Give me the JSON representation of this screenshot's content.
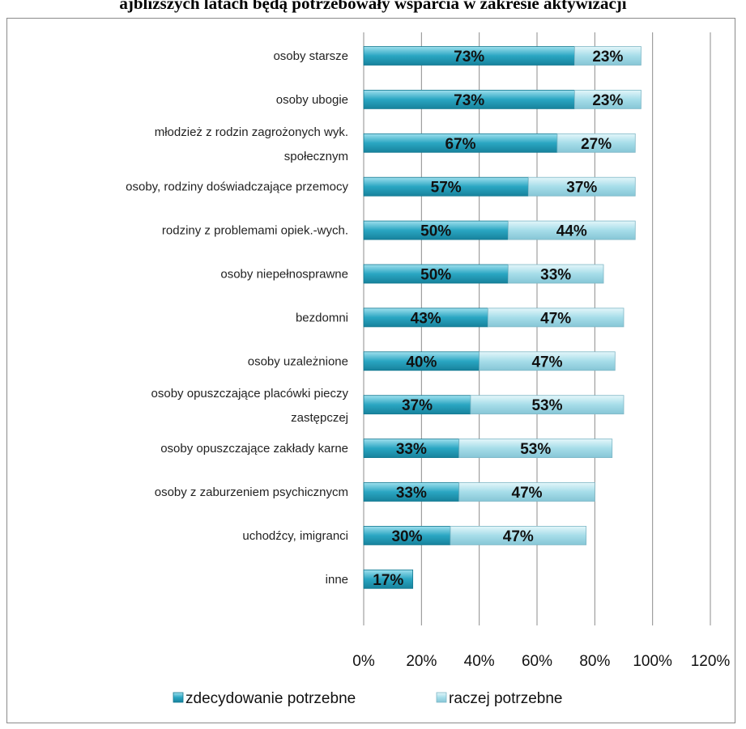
{
  "chart_data": {
    "type": "bar",
    "orientation": "horizontal",
    "stacked": true,
    "title": "ajbliższych latach będą potrzebowały wsparcia w zakresie aktywizacji",
    "categories": [
      "osoby starsze",
      "osoby ubogie",
      "młodzież z rodzin zagrożonych wyk. społecznym",
      "osoby, rodziny doświadczające przemocy",
      "rodziny z problemami opiek.-wych.",
      "osoby niepełnosprawne",
      "bezdomni",
      "osoby uzależnione",
      "osoby opuszczające placówki pieczy zastępczej",
      "osoby opuszczające zakłady karne",
      "osoby z zaburzeniem psychicznycm",
      "uchodźcy, imigranci",
      "inne"
    ],
    "series": [
      {
        "name": "zdecydowanie potrzebne",
        "color": "#2aa6c2",
        "values": [
          73,
          73,
          67,
          57,
          50,
          50,
          43,
          40,
          37,
          33,
          33,
          30,
          17
        ],
        "labels": [
          "73%",
          "73%",
          "67%",
          "57%",
          "50%",
          "50%",
          "43%",
          "40%",
          "37%",
          "33%",
          "33%",
          "30%",
          "17%"
        ]
      },
      {
        "name": "raczej potrzebne",
        "color": "#a6dde9",
        "values": [
          23,
          23,
          27,
          37,
          44,
          33,
          47,
          47,
          53,
          53,
          47,
          47,
          null
        ],
        "labels": [
          "23%",
          "23%",
          "27%",
          "37%",
          "44%",
          "33%",
          "47%",
          "47%",
          "53%",
          "53%",
          "47%",
          "47%",
          ""
        ]
      }
    ],
    "xlim": [
      0,
      120
    ],
    "xticks": [
      "0%",
      "20%",
      "40%",
      "60%",
      "80%",
      "100%",
      "120%"
    ],
    "grid": true,
    "legend": "bottom"
  }
}
